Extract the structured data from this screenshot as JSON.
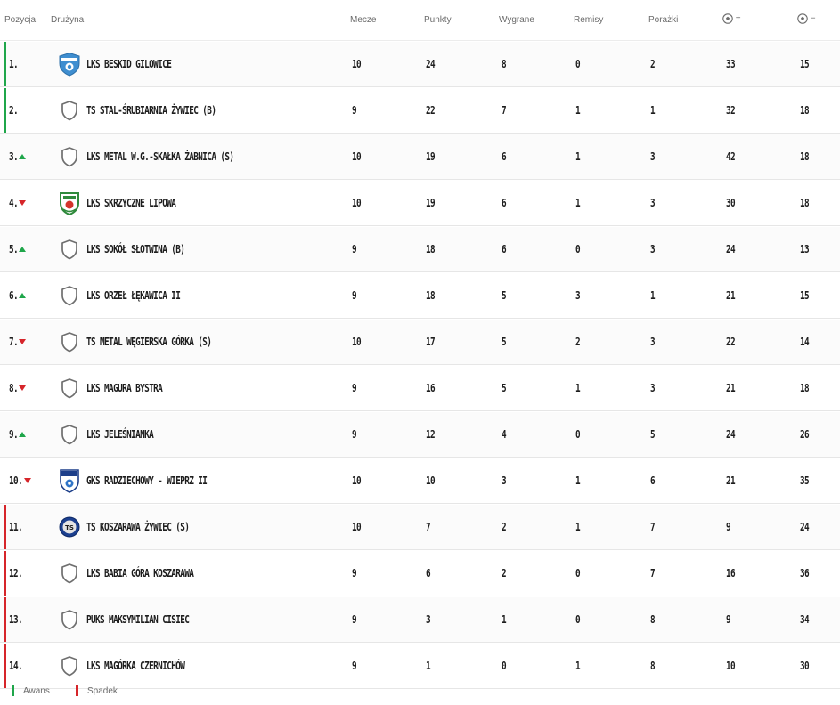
{
  "header": {
    "position": "Pozycja",
    "team": "Drużyna",
    "played": "Mecze",
    "points": "Punkty",
    "wins": "Wygrane",
    "draws": "Remisy",
    "losses": "Porażki",
    "goals_for": "+",
    "goals_against": "−"
  },
  "colors": {
    "promotion": "#1fa64a",
    "relegation": "#d6252a",
    "trend_up": "#1fa64a",
    "trend_down": "#d6252a"
  },
  "rows": [
    {
      "pos": "1.",
      "trend": "none",
      "zone": "promotion",
      "crest": "beskid-crest",
      "team": "LKS BESKID GILOWICE",
      "m": "10",
      "p": "24",
      "w": "8",
      "d": "0",
      "l": "2",
      "gf": "33",
      "ga": "15"
    },
    {
      "pos": "2.",
      "trend": "none",
      "zone": "promotion",
      "crest": "default-shield",
      "team": "TS STAL-ŚRUBIARNIA ŻYWIEC (B)",
      "m": "9",
      "p": "22",
      "w": "7",
      "d": "1",
      "l": "1",
      "gf": "32",
      "ga": "18"
    },
    {
      "pos": "3.",
      "trend": "up",
      "zone": "none",
      "crest": "default-shield",
      "team": "LKS METAL W.G.-SKAŁKA ŻABNICA (S)",
      "m": "10",
      "p": "19",
      "w": "6",
      "d": "1",
      "l": "3",
      "gf": "42",
      "ga": "18"
    },
    {
      "pos": "4.",
      "trend": "down",
      "zone": "none",
      "crest": "skrzyczne-crest",
      "team": "LKS SKRZYCZNE LIPOWA",
      "m": "10",
      "p": "19",
      "w": "6",
      "d": "1",
      "l": "3",
      "gf": "30",
      "ga": "18"
    },
    {
      "pos": "5.",
      "trend": "up",
      "zone": "none",
      "crest": "default-shield",
      "team": "LKS SOKÓŁ SŁOTWINA (B)",
      "m": "9",
      "p": "18",
      "w": "6",
      "d": "0",
      "l": "3",
      "gf": "24",
      "ga": "13"
    },
    {
      "pos": "6.",
      "trend": "up",
      "zone": "none",
      "crest": "default-shield",
      "team": "LKS ORZEŁ ŁĘKAWICA II",
      "m": "9",
      "p": "18",
      "w": "5",
      "d": "3",
      "l": "1",
      "gf": "21",
      "ga": "15"
    },
    {
      "pos": "7.",
      "trend": "down",
      "zone": "none",
      "crest": "default-shield",
      "team": "TS METAL WĘGIERSKA GÓRKA (S)",
      "m": "10",
      "p": "17",
      "w": "5",
      "d": "2",
      "l": "3",
      "gf": "22",
      "ga": "14"
    },
    {
      "pos": "8.",
      "trend": "down",
      "zone": "none",
      "crest": "default-shield",
      "team": "LKS MAGURA BYSTRA",
      "m": "9",
      "p": "16",
      "w": "5",
      "d": "1",
      "l": "3",
      "gf": "21",
      "ga": "18"
    },
    {
      "pos": "9.",
      "trend": "up",
      "zone": "none",
      "crest": "default-shield",
      "team": "LKS JELEŚNIANKA",
      "m": "9",
      "p": "12",
      "w": "4",
      "d": "0",
      "l": "5",
      "gf": "24",
      "ga": "26"
    },
    {
      "pos": "10.",
      "trend": "down",
      "zone": "none",
      "crest": "radziechowy-crest",
      "team": "GKS RADZIECHOWY - WIEPRZ II",
      "m": "10",
      "p": "10",
      "w": "3",
      "d": "1",
      "l": "6",
      "gf": "21",
      "ga": "35"
    },
    {
      "pos": "11.",
      "trend": "none",
      "zone": "relegation",
      "crest": "koszarawa-crest",
      "team": "TS KOSZARAWA ŻYWIEC (S)",
      "m": "10",
      "p": "7",
      "w": "2",
      "d": "1",
      "l": "7",
      "gf": "9",
      "ga": "24"
    },
    {
      "pos": "12.",
      "trend": "none",
      "zone": "relegation",
      "crest": "default-shield",
      "team": "LKS BABIA GÓRA KOSZARAWA",
      "m": "9",
      "p": "6",
      "w": "2",
      "d": "0",
      "l": "7",
      "gf": "16",
      "ga": "36"
    },
    {
      "pos": "13.",
      "trend": "none",
      "zone": "relegation",
      "crest": "default-shield",
      "team": "PUKS MAKSYMILIAN CISIEC",
      "m": "9",
      "p": "3",
      "w": "1",
      "d": "0",
      "l": "8",
      "gf": "9",
      "ga": "34"
    },
    {
      "pos": "14.",
      "trend": "none",
      "zone": "relegation",
      "crest": "default-shield",
      "team": "LKS MAGÓRKA CZERNICHÓW",
      "m": "9",
      "p": "1",
      "w": "0",
      "d": "1",
      "l": "8",
      "gf": "10",
      "ga": "30"
    }
  ],
  "legend": {
    "promotion": "Awans",
    "relegation": "Spadek"
  }
}
